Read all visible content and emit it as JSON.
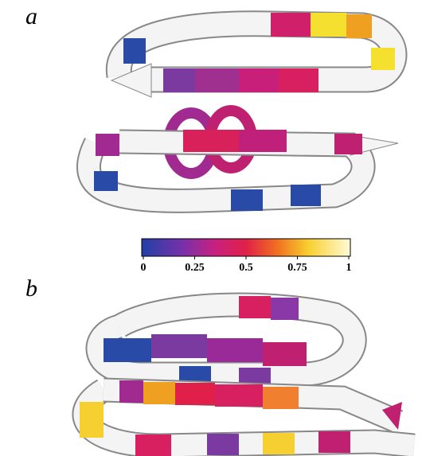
{
  "panels": [
    {
      "label": "a"
    },
    {
      "label": "b"
    }
  ],
  "colorbar": {
    "range": [
      0,
      1
    ],
    "ticks": [
      0,
      0.25,
      0.5,
      0.75,
      1
    ]
  }
}
